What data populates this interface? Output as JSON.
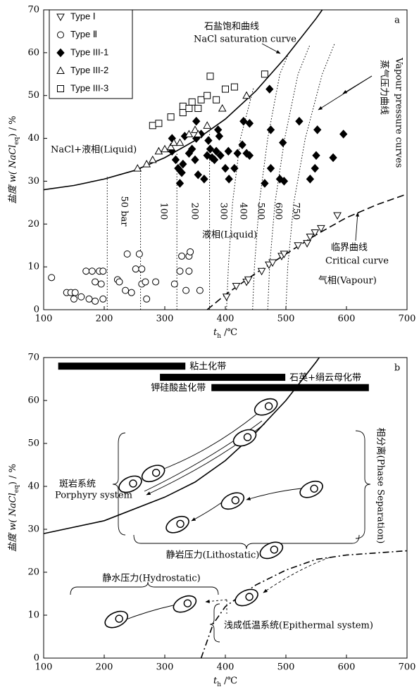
{
  "chart_data": [
    {
      "type": "scatter",
      "panel": "a",
      "xlabel": {
        "text": "t",
        "sub": "h",
        "unit": " /℃"
      },
      "ylabel": {
        "text": "盐度 w( NaCl",
        "sub": "eq",
        "unit": ") / %"
      },
      "xlim": [
        100,
        700
      ],
      "ylim": [
        0,
        70
      ],
      "xticks": [
        100,
        200,
        300,
        400,
        500,
        600,
        700
      ],
      "yticks": [
        0,
        10,
        20,
        30,
        40,
        50,
        60,
        70
      ],
      "legend": "upper left",
      "series": [
        {
          "name": "Type Ⅰ",
          "marker": "triangle-down",
          "filled": false,
          "color": "#000",
          "x": [
            402,
            418,
            435,
            438,
            460,
            472,
            478,
            493,
            497,
            520,
            535,
            540,
            548,
            558,
            585
          ],
          "y": [
            3,
            5.5,
            6.5,
            7,
            9,
            10.5,
            11,
            12.5,
            13,
            15,
            15.5,
            17,
            18,
            19,
            22
          ]
        },
        {
          "name": "Type Ⅱ",
          "marker": "circle",
          "filled": false,
          "color": "#000",
          "x": [
            113,
            138,
            145,
            152,
            150,
            162,
            170,
            180,
            175,
            185,
            192,
            198,
            185,
            195,
            198,
            222,
            225,
            235,
            238,
            245,
            252,
            258,
            262,
            262,
            268,
            270,
            285,
            316,
            325,
            328,
            335,
            340,
            340,
            342,
            358
          ],
          "y": [
            7.5,
            4,
            4,
            4,
            2.5,
            3,
            9,
            9,
            2.5,
            2,
            9,
            9,
            6.5,
            6,
            2.5,
            7,
            6.5,
            4.5,
            13,
            4,
            9.5,
            13,
            9.5,
            6,
            6.5,
            2.5,
            6.5,
            6,
            9,
            12.5,
            4.5,
            9,
            12.5,
            13.5,
            4.5
          ]
        },
        {
          "name": "Type III-1",
          "marker": "diamond",
          "filled": true,
          "color": "#000",
          "x": [
            312,
            312,
            318,
            322,
            325,
            328,
            330,
            333,
            340,
            345,
            350,
            352,
            352,
            355,
            360,
            365,
            370,
            372,
            375,
            378,
            382,
            385,
            388,
            390,
            392,
            400,
            405,
            406,
            415,
            420,
            428,
            430,
            435,
            440,
            440,
            465,
            473,
            475,
            475,
            490,
            495,
            497,
            522,
            540,
            548,
            550,
            552,
            578,
            595
          ],
          "y": [
            37,
            40,
            35,
            33,
            29.5,
            32,
            34,
            40.5,
            36.5,
            37.5,
            35,
            40,
            44,
            31.5,
            41,
            30.5,
            36,
            39.5,
            37.5,
            35.5,
            35,
            37,
            42,
            40.5,
            36,
            33,
            37,
            30.5,
            33,
            36.5,
            38.5,
            44,
            36.5,
            36,
            43.5,
            29.5,
            51.5,
            42,
            33,
            30.5,
            39,
            30,
            44,
            30.5,
            33,
            36,
            42,
            35.5,
            41
          ]
        },
        {
          "name": "Type III-2",
          "marker": "triangle-up",
          "filled": false,
          "color": "#000",
          "x": [
            255,
            270,
            280,
            290,
            300,
            310,
            315,
            325,
            340,
            350,
            355,
            370,
            395,
            435
          ],
          "y": [
            33,
            34,
            35,
            37,
            37.5,
            38,
            39,
            39,
            41,
            42,
            41,
            43,
            47,
            50
          ]
        },
        {
          "name": "Type III-3",
          "marker": "square",
          "filled": false,
          "color": "#000",
          "x": [
            280,
            290,
            310,
            330,
            330,
            340,
            345,
            355,
            360,
            370,
            375,
            385,
            400,
            415,
            465
          ],
          "y": [
            43,
            43.5,
            45,
            46,
            47.5,
            47,
            48.5,
            47,
            49,
            50,
            54.5,
            49,
            51.5,
            52,
            55
          ]
        }
      ],
      "curves": [
        {
          "name": "石盐饱和曲线",
          "name_en": "NaCl saturation curve",
          "style": "solid",
          "color": "#000",
          "x": [
            100,
            150,
            200,
            250,
            300,
            350,
            400,
            450,
            500,
            550,
            560
          ],
          "y": [
            28,
            29,
            30.5,
            32.5,
            35.5,
            39.5,
            44.5,
            51,
            59,
            68,
            70
          ]
        },
        {
          "name": "临界曲线",
          "name_en": "Critical curve",
          "style": "dashed",
          "color": "#000",
          "x": [
            370,
            400,
            450,
            500,
            550,
            600,
            650,
            700
          ],
          "y": [
            0,
            3.5,
            8.5,
            13,
            17.5,
            21.5,
            24.5,
            27
          ]
        }
      ],
      "isobars": [
        {
          "label": "50 bar",
          "x": [
            205,
            205
          ],
          "y": [
            0,
            31
          ]
        },
        {
          "label": "100",
          "x": [
            260,
            260
          ],
          "y": [
            0,
            33.5
          ]
        },
        {
          "label": "200",
          "x": [
            320,
            320
          ],
          "y": [
            0,
            36.5
          ]
        },
        {
          "label": "300",
          "x": [
            374,
            374
          ],
          "y": [
            0,
            41.5
          ]
        },
        {
          "label": "400",
          "x": [
            402,
            405,
            412,
            425,
            447
          ],
          "y": [
            0,
            10,
            25,
            40,
            52
          ]
        },
        {
          "label": "500",
          "x": [
            445,
            448,
            456,
            470,
            490,
            505
          ],
          "y": [
            0,
            10,
            25,
            40,
            55,
            60
          ]
        },
        {
          "label": "600",
          "x": [
            470,
            473,
            482,
            498,
            520,
            540
          ],
          "y": [
            0,
            10,
            25,
            40,
            55,
            62
          ]
        },
        {
          "label": "750",
          "x": [
            500,
            503,
            513,
            532,
            560,
            580
          ],
          "y": [
            0,
            10,
            25,
            40,
            55,
            62
          ]
        }
      ],
      "annotations": [
        "NaCl+液相(Liquid)",
        "蒸气压力曲线",
        "Vapour pressure curves",
        "液相(Liquid)",
        "气相(Vapour)"
      ]
    },
    {
      "type": "line",
      "panel": "b",
      "xlabel": {
        "text": "t",
        "sub": "h",
        "unit": " /℃"
      },
      "ylabel": {
        "text": "盐度 w( NaCl",
        "sub": "eq",
        "unit": ") / %"
      },
      "xlim": [
        100,
        700
      ],
      "ylim": [
        0,
        70
      ],
      "xticks": [
        100,
        200,
        300,
        400,
        500,
        600,
        700
      ],
      "yticks": [
        0,
        10,
        20,
        30,
        40,
        50,
        60,
        70
      ],
      "curves": [
        {
          "style": "solid",
          "color": "#000",
          "x": [
            100,
            200,
            300,
            350,
            400,
            450,
            500,
            550,
            555
          ],
          "y": [
            29,
            32,
            37.5,
            41,
            46,
            52.5,
            60,
            69,
            70
          ]
        },
        {
          "style": "dashdot",
          "color": "#000",
          "x": [
            360,
            380,
            400,
            450,
            500,
            550,
            600,
            700
          ],
          "y": [
            0,
            8,
            12,
            17,
            20.5,
            23,
            24,
            25
          ]
        }
      ],
      "alteration_zones": [
        {
          "label": "粘土化带",
          "range": [
            124,
            334
          ],
          "y": 68
        },
        {
          "label": "石英+绢云母化带",
          "range": [
            292,
            499
          ],
          "y": 65.4
        },
        {
          "label": "钾硅酸盐化带",
          "range": [
            377,
            637
          ],
          "y": 63
        }
      ],
      "inclusions": {
        "x": [
          467,
          432,
          281,
          243,
          412,
          542,
          321,
          476,
          435,
          333,
          220
        ],
        "y": [
          58.5,
          51.3,
          43,
          40.5,
          36.6,
          39.3,
          31.1,
          25.1,
          14.1,
          12.6,
          9
        ]
      },
      "annotations": [
        "斑岩系统",
        "Porphyry system",
        "相分离(Phase Separation)",
        "静岩压力(Lithostatic)",
        "静水压力(Hydrostatic)",
        "浅成低温系统(Epithermal system)"
      ]
    }
  ]
}
